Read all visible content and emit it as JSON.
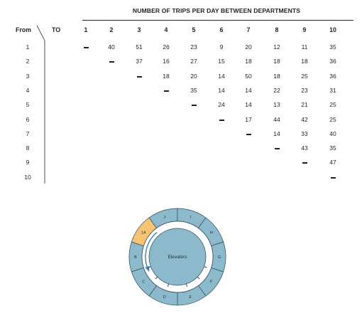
{
  "title": "NUMBER OF TRIPS PER DAY BETWEEN DEPARTMENTS",
  "from_label": "From",
  "to_label": "TO",
  "columns": [
    "1",
    "2",
    "3",
    "4",
    "5",
    "6",
    "7",
    "8",
    "9",
    "10"
  ],
  "rows": [
    {
      "label": "1",
      "cells": [
        "—",
        "40",
        "51",
        "26",
        "23",
        "9",
        "20",
        "12",
        "11",
        "35"
      ]
    },
    {
      "label": "2",
      "cells": [
        "",
        "—",
        "37",
        "16",
        "27",
        "15",
        "18",
        "18",
        "18",
        "36"
      ]
    },
    {
      "label": "3",
      "cells": [
        "",
        "",
        "—",
        "18",
        "20",
        "14",
        "50",
        "18",
        "25",
        "36"
      ]
    },
    {
      "label": "4",
      "cells": [
        "",
        "",
        "",
        "—",
        "35",
        "14",
        "14",
        "22",
        "23",
        "31"
      ]
    },
    {
      "label": "5",
      "cells": [
        "",
        "",
        "",
        "",
        "—",
        "24",
        "14",
        "13",
        "21",
        "25"
      ]
    },
    {
      "label": "6",
      "cells": [
        "",
        "",
        "",
        "",
        "",
        "—",
        "17",
        "44",
        "42",
        "25"
      ]
    },
    {
      "label": "7",
      "cells": [
        "",
        "",
        "",
        "",
        "",
        "",
        "—",
        "14",
        "33",
        "40"
      ]
    },
    {
      "label": "8",
      "cells": [
        "",
        "",
        "",
        "",
        "",
        "",
        "",
        "—",
        "43",
        "35"
      ]
    },
    {
      "label": "9",
      "cells": [
        "",
        "",
        "",
        "",
        "",
        "",
        "",
        "",
        "—",
        "47"
      ]
    },
    {
      "label": "10",
      "cells": [
        "",
        "",
        "",
        "",
        "",
        "",
        "",
        "",
        "",
        "—"
      ]
    }
  ],
  "floorplan": {
    "departments": [
      "B",
      "1A",
      "J",
      "I",
      "H",
      "G",
      "F",
      "E",
      "D",
      "C"
    ],
    "highlighted": "1A",
    "center_label": "Elevators",
    "colors": {
      "department": "#8db9cd",
      "highlight": "#f8c471",
      "outline": "#2b4a5a",
      "elevator": "#8db9cd",
      "arrow": "#2e86c1"
    }
  }
}
